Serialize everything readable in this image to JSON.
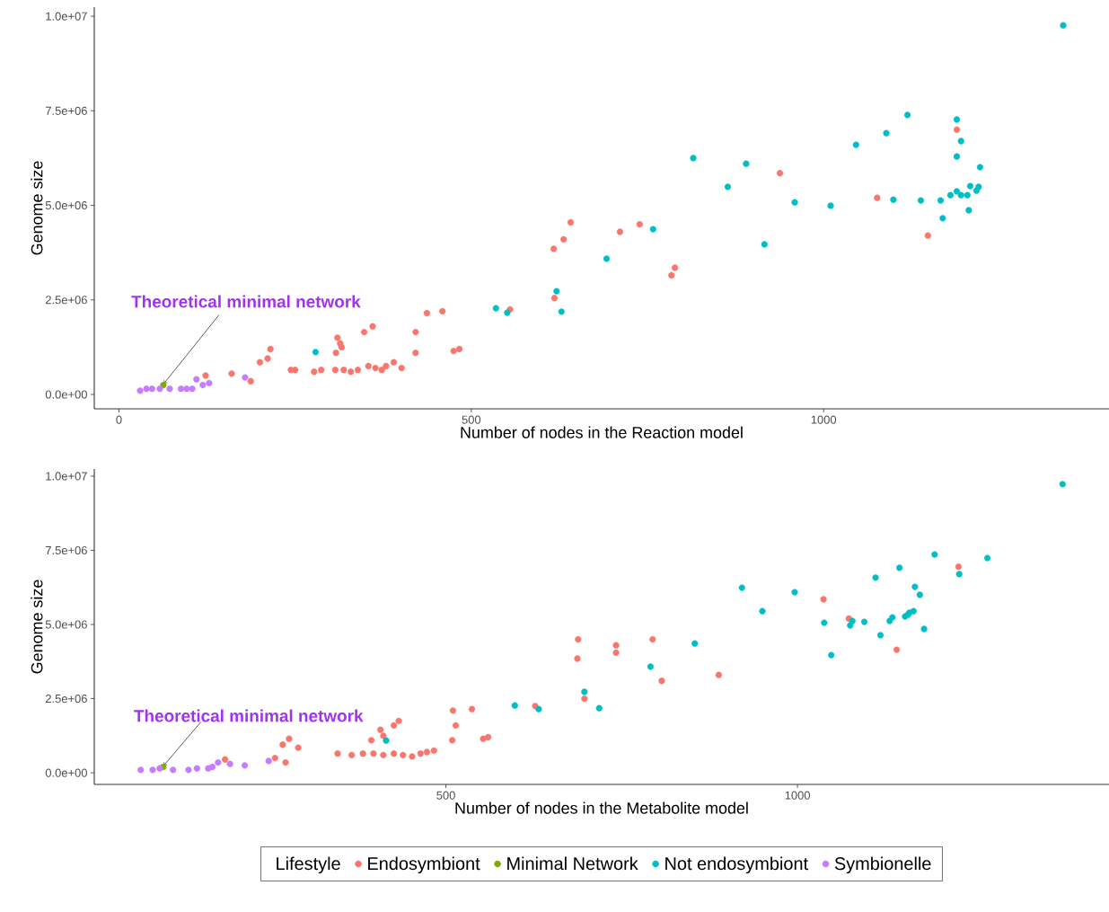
{
  "chart_data": [
    {
      "type": "scatter",
      "xlabel": "Number of nodes in the Reaction model",
      "ylabel": "Genome size",
      "xlim": [
        -35,
        1405
      ],
      "ylim": [
        -380000,
        10240000
      ],
      "xticks": [
        0,
        500,
        1000
      ],
      "yticks": [
        {
          "value": 0,
          "label": "0.0e+00"
        },
        {
          "value": 2500000,
          "label": "2.5e+06"
        },
        {
          "value": 5000000,
          "label": "5.0e+06"
        },
        {
          "value": 7500000,
          "label": "7.5e+06"
        },
        {
          "value": 10000000,
          "label": "1.0e+07"
        }
      ],
      "annotations": [
        {
          "text": "Theoretical minimal network",
          "x": 63,
          "y": 250000
        }
      ],
      "series": [
        {
          "color": "#f8766d",
          "x": [
            123,
            160,
            187,
            200,
            211,
            215,
            244,
            250,
            277,
            287,
            310,
            314,
            316,
            308,
            348,
            360,
            421,
            437,
            459,
            421,
            475,
            483,
            307,
            319,
            329,
            339,
            354,
            364,
            373,
            379,
            390,
            401,
            555,
            617,
            631,
            641,
            618,
            711,
            739,
            789,
            784,
            938,
            1076,
            1148,
            1189
          ],
          "values": [
            500000,
            550000,
            350000,
            850000,
            950000,
            1200000,
            650000,
            650000,
            600000,
            650000,
            1500000,
            1350000,
            1250000,
            1100000,
            1650000,
            1800000,
            1650000,
            2150000,
            2200000,
            1100000,
            1150000,
            1200000,
            650000,
            650000,
            600000,
            650000,
            750000,
            700000,
            650000,
            750000,
            850000,
            700000,
            2250000,
            3850000,
            4100000,
            4550000,
            2550000,
            4300000,
            4500000,
            3350000,
            3150000,
            5850000,
            5200000,
            4200000,
            7000000
          ]
        },
        {
          "color": "#7cae00",
          "x": [
            63
          ],
          "values": [
            250000
          ]
        },
        {
          "color": "#00bfc4",
          "x": [
            279,
            535,
            551,
            621,
            628,
            692,
            758,
            815,
            864,
            890,
            916,
            959,
            1010,
            1046,
            1089,
            1119,
            1099,
            1138,
            1166,
            1169,
            1180,
            1189,
            1195,
            1204,
            1208,
            1220,
            1217,
            1206,
            1189,
            1195,
            1189,
            1222,
            1340
          ],
          "values": [
            1120000,
            2280000,
            2160000,
            2730000,
            2190000,
            3590000,
            4370000,
            6250000,
            5490000,
            6100000,
            3970000,
            5080000,
            4990000,
            6600000,
            6910000,
            7390000,
            5150000,
            5130000,
            5130000,
            4660000,
            5270000,
            5370000,
            5270000,
            5270000,
            5510000,
            5490000,
            5390000,
            4870000,
            7270000,
            6700000,
            6290000,
            6010000,
            9760000
          ]
        },
        {
          "color": "#c77cff",
          "x": [
            30,
            39,
            47,
            58,
            72,
            88,
            96,
            104,
            110,
            119,
            128,
            179
          ],
          "values": [
            100000,
            150000,
            150000,
            150000,
            150000,
            150000,
            150000,
            150000,
            400000,
            250000,
            300000,
            450000
          ]
        }
      ]
    },
    {
      "type": "scatter",
      "xlabel": "Number of nodes in the Metabolite model",
      "ylabel": "Genome size",
      "xlim": [
        0,
        1443
      ],
      "ylim": [
        -390000,
        10240000
      ],
      "xticks": [
        500,
        1000
      ],
      "yticks": [
        {
          "value": 0,
          "label": "0.0e+00"
        },
        {
          "value": 2500000,
          "label": "2.5e+06"
        },
        {
          "value": 5000000,
          "label": "5.0e+06"
        },
        {
          "value": 7500000,
          "label": "7.5e+06"
        },
        {
          "value": 10000000,
          "label": "1.0e+07"
        }
      ],
      "legend": "bottom",
      "legend_title": "Lifestyle",
      "annotations": [
        {
          "text": "Theoretical minimal network",
          "x": 98,
          "y": 200000
        }
      ],
      "series": [
        {
          "name": "Endosymbiont",
          "color": "#f8766d",
          "x": [
            186,
            257,
            272,
            268,
            277,
            290,
            346,
            366,
            382,
            397,
            411,
            426,
            439,
            452,
            464,
            473,
            483,
            394,
            407,
            411,
            426,
            433,
            510,
            537,
            514,
            509,
            553,
            560,
            627,
            697,
            688,
            687,
            742,
            742,
            794,
            807,
            888,
            1037,
            1073,
            1141,
            1229
          ],
          "values": [
            450000,
            500000,
            350000,
            950000,
            1150000,
            850000,
            650000,
            600000,
            650000,
            650000,
            600000,
            650000,
            600000,
            550000,
            650000,
            700000,
            750000,
            1100000,
            1450000,
            1250000,
            1600000,
            1750000,
            2100000,
            2150000,
            1600000,
            1100000,
            1150000,
            1200000,
            2250000,
            2500000,
            4500000,
            3850000,
            4300000,
            4050000,
            4500000,
            3100000,
            3300000,
            5850000,
            5200000,
            4150000,
            6950000
          ]
        },
        {
          "name": "Minimal Network",
          "color": "#7cae00",
          "x": [
            98
          ],
          "values": [
            200000
          ]
        },
        {
          "name": "Not endosymbiont",
          "color": "#00bfc4",
          "x": [
            415,
            598,
            632,
            697,
            718,
            791,
            854,
            921,
            950,
            996,
            1038,
            1048,
            1075,
            1078,
            1095,
            1111,
            1118,
            1131,
            1135,
            1145,
            1153,
            1157,
            1159,
            1165,
            1167,
            1174,
            1180,
            1195,
            1230,
            1270,
            1377
          ],
          "values": [
            1090000,
            2270000,
            2150000,
            2730000,
            2180000,
            3580000,
            4360000,
            6240000,
            5450000,
            6090000,
            5060000,
            3970000,
            4970000,
            5120000,
            5090000,
            6580000,
            4640000,
            5120000,
            5240000,
            6910000,
            5270000,
            5330000,
            5400000,
            5450000,
            6270000,
            6000000,
            4850000,
            7360000,
            6700000,
            7240000,
            9730000
          ]
        },
        {
          "name": "Symbionelle",
          "color": "#c77cff",
          "x": [
            66,
            83,
            93,
            112,
            134,
            146,
            162,
            168,
            176,
            193,
            214,
            248
          ],
          "values": [
            100000,
            100000,
            150000,
            100000,
            100000,
            150000,
            150000,
            200000,
            350000,
            300000,
            250000,
            400000
          ]
        }
      ]
    }
  ]
}
